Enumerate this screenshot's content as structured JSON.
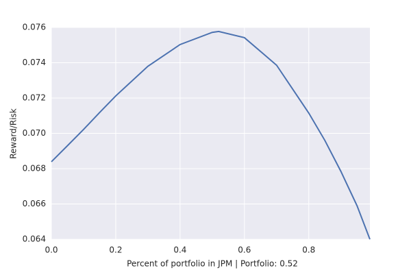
{
  "chart_data": {
    "type": "line",
    "xlabel": "Percent of portfolio in JPM | Portfolio: 0.52",
    "ylabel": "Reward/Risk",
    "x": [
      0,
      0.05,
      0.1,
      0.15,
      0.2,
      0.3,
      0.4,
      0.5,
      0.52,
      0.6,
      0.7,
      0.8,
      0.85,
      0.9,
      0.95,
      0.99
    ],
    "series": [
      {
        "name": "Reward/Risk",
        "color": "#4c72b0",
        "values": [
          0.06839,
          0.0693,
          0.07022,
          0.07118,
          0.07212,
          0.0738,
          0.07503,
          0.07572,
          0.07577,
          0.07542,
          0.07386,
          0.07115,
          0.0696,
          0.06784,
          0.0659,
          0.064
        ]
      }
    ],
    "xlim": [
      0,
      0.99
    ],
    "ylim": [
      0.064,
      0.076
    ],
    "xticks": [
      {
        "value": 0,
        "label": "0.0"
      },
      0.2,
      0.4,
      0.6,
      0.8
    ],
    "yticks": [
      0.064,
      0.066,
      0.068,
      {
        "value": 0.07,
        "label": "0.070"
      },
      0.072,
      0.074,
      0.076
    ],
    "grid": true
  }
}
